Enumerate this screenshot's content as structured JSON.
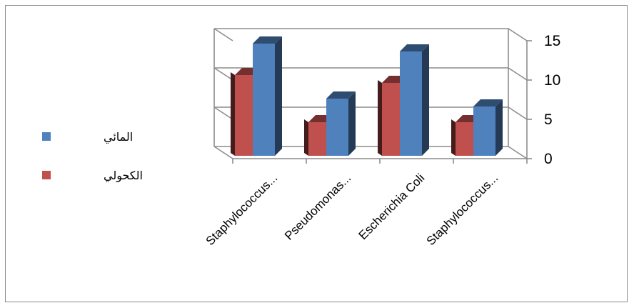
{
  "chart_data": {
    "type": "bar",
    "style": "3d-clustered-column",
    "categories": [
      "Staphylococcus...",
      "Pseudomonas...",
      "Escherichia Coli",
      "Staphylococcus..."
    ],
    "series": [
      {
        "name": "الكحولي",
        "color": "#c0504d",
        "values": [
          11,
          5,
          10,
          5
        ]
      },
      {
        "name": "المائي",
        "color": "#4f81bd",
        "values": [
          15,
          8,
          14,
          7
        ]
      }
    ],
    "ylim": [
      0,
      15
    ],
    "yticks": [
      0,
      5,
      10,
      15
    ],
    "y_axis_side": "right",
    "grid": true,
    "legend": "left"
  }
}
